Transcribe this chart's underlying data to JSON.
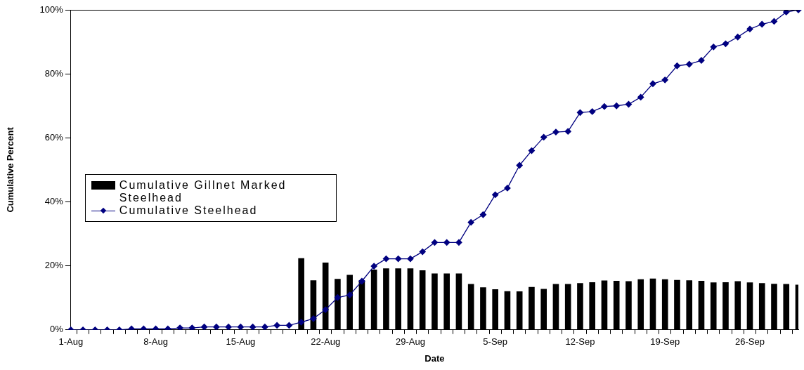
{
  "chart_data": {
    "type": "bar",
    "xlabel": "Date",
    "ylabel": "Cumulative Percent",
    "categories": [
      "1-Aug",
      null,
      null,
      null,
      null,
      null,
      null,
      "8-Aug",
      null,
      null,
      null,
      null,
      null,
      null,
      "15-Aug",
      null,
      null,
      null,
      null,
      null,
      null,
      "22-Aug",
      null,
      null,
      null,
      null,
      null,
      null,
      "29-Aug",
      null,
      null,
      null,
      null,
      null,
      null,
      "5-Sep",
      null,
      null,
      null,
      null,
      null,
      null,
      "12-Sep",
      null,
      null,
      null,
      null,
      null,
      null,
      "19-Sep",
      null,
      null,
      null,
      null,
      null,
      null,
      "26-Sep",
      null,
      null,
      null,
      null
    ],
    "series": [
      {
        "name": "Cumulative Gillnet Marked Steelhead",
        "color": "#000000",
        "values": [
          null,
          null,
          null,
          null,
          null,
          null,
          null,
          null,
          null,
          null,
          null,
          null,
          null,
          null,
          null,
          null,
          null,
          null,
          null,
          22.4,
          15.5,
          21.0,
          15.9,
          17.2,
          15.5,
          18.8,
          19.2,
          19.2,
          19.2,
          18.6,
          17.6,
          17.6,
          17.6,
          14.3,
          13.3,
          12.7,
          12.1,
          12.0,
          13.4,
          12.8,
          14.3,
          14.3,
          14.6,
          14.9,
          15.4,
          15.3,
          15.2,
          15.8,
          16.0,
          15.8,
          15.6,
          15.5,
          15.3,
          14.8,
          14.9,
          15.2,
          14.8,
          14.6,
          14.4,
          14.3,
          14.1
        ]
      },
      {
        "name": "Cumulative Steelhead",
        "type": "line",
        "color": "#000080",
        "values": [
          0,
          0,
          0,
          0,
          0,
          0.3,
          0.3,
          0.3,
          0.3,
          0.6,
          0.6,
          0.9,
          0.9,
          0.9,
          0.9,
          0.9,
          0.9,
          1.4,
          1.4,
          2.4,
          3.5,
          6.3,
          10.1,
          10.9,
          15.2,
          19.9,
          22.2,
          22.2,
          22.2,
          24.4,
          27.3,
          27.3,
          27.3,
          33.6,
          36.0,
          42.2,
          44.3,
          51.4,
          56.0,
          60.2,
          61.8,
          62.0,
          67.9,
          68.2,
          69.8,
          70.0,
          70.5,
          72.7,
          76.9,
          78.1,
          82.5,
          83.0,
          84.2,
          88.4,
          89.4,
          91.5,
          94.0,
          95.5,
          96.4,
          99.3,
          100
        ]
      }
    ],
    "ylim": [
      0,
      100
    ],
    "yticks": [
      {
        "value": 0,
        "label": "0%"
      },
      {
        "value": 20,
        "label": "20%"
      },
      {
        "value": 40,
        "label": "40%"
      },
      {
        "value": 60,
        "label": "60%"
      },
      {
        "value": 80,
        "label": "80%"
      },
      {
        "value": 100,
        "label": "100%"
      }
    ],
    "grid": false,
    "legend": "left",
    "marker": "diamond",
    "line_style": "solid"
  }
}
